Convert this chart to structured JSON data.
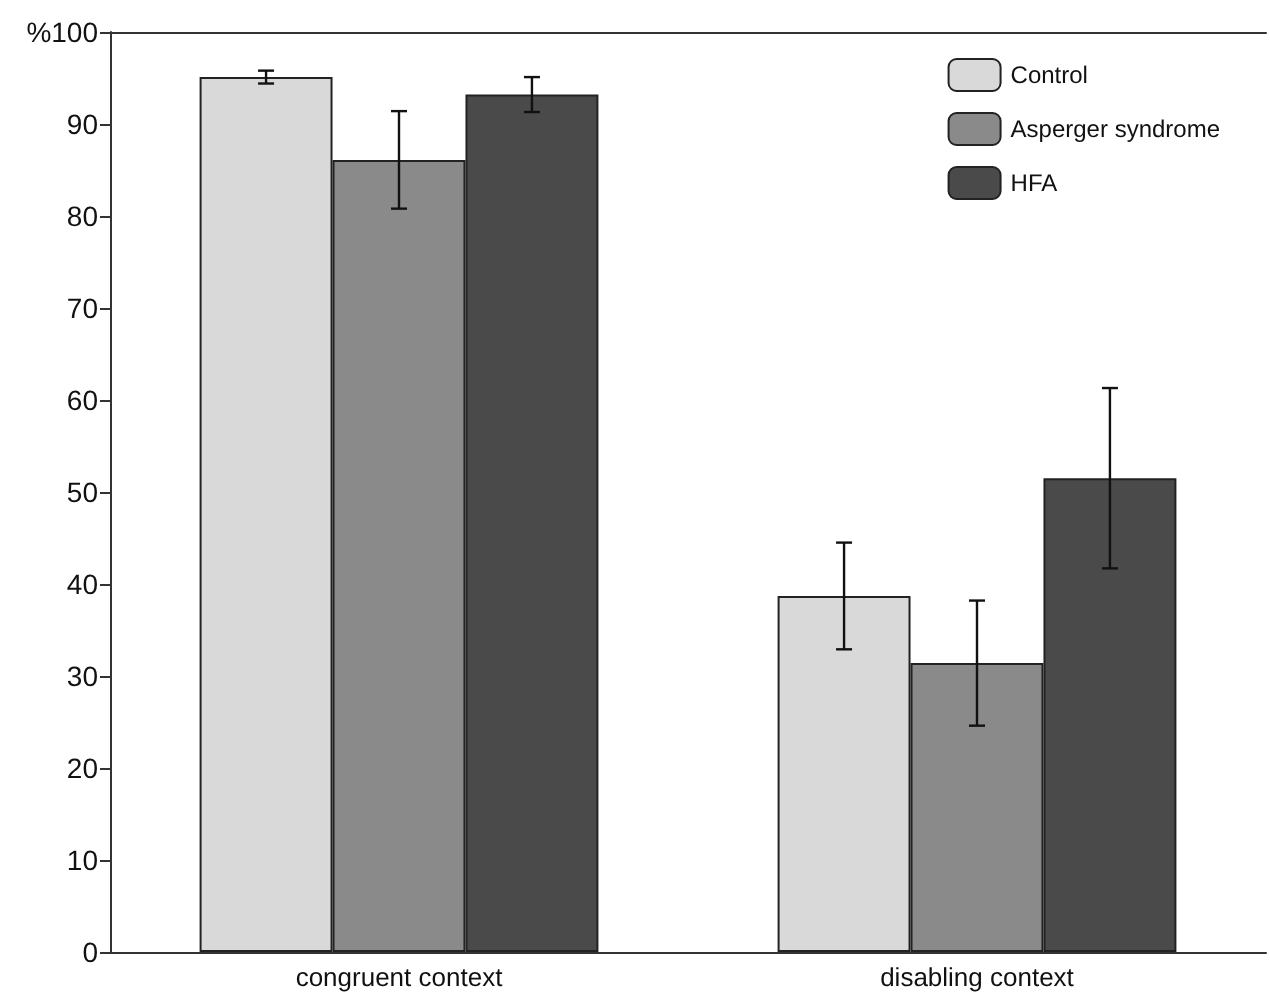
{
  "chart_data": {
    "type": "bar",
    "categories": [
      "congruent context",
      "disabling context"
    ],
    "series": [
      {
        "name": "Control",
        "color": "#d9d9d9",
        "values": [
          95.1,
          38.7
        ],
        "errors": [
          0.7,
          5.8
        ]
      },
      {
        "name": "Asperger syndrome",
        "color": "#8a8a8a",
        "values": [
          86.1,
          31.4
        ],
        "errors": [
          5.3,
          6.8
        ]
      },
      {
        "name": "HFA",
        "color": "#4a4a4a",
        "values": [
          93.2,
          51.5
        ],
        "errors": [
          1.9,
          9.8
        ]
      }
    ],
    "ylim": [
      0,
      100
    ],
    "yticks": [
      0,
      10,
      20,
      30,
      40,
      50,
      60,
      70,
      80,
      90,
      {
        "value": 100,
        "label": "%100"
      }
    ],
    "grid": false,
    "legend": "top right"
  }
}
